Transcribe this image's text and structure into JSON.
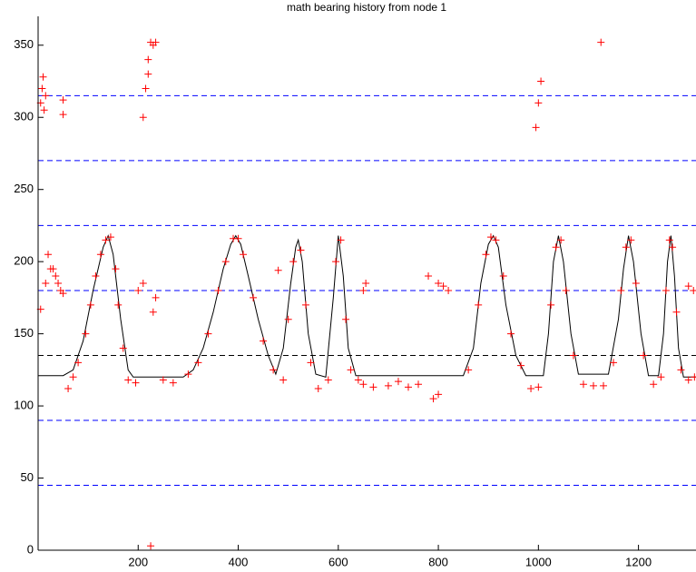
{
  "chart_data": {
    "type": "scatter",
    "title": "math bearing history from node 1",
    "xlim": [
      0,
      1315
    ],
    "ylim": [
      0,
      370
    ],
    "xticks": [
      200,
      400,
      600,
      800,
      1000,
      1200
    ],
    "yticks": [
      0,
      50,
      100,
      150,
      200,
      250,
      300,
      350
    ],
    "hlines": [
      {
        "value": 0,
        "color": "#0000ff"
      },
      {
        "value": 45,
        "color": "#0000ff"
      },
      {
        "value": 90,
        "color": "#0000ff"
      },
      {
        "value": 135,
        "color": "#000000"
      },
      {
        "value": 180,
        "color": "#0000ff"
      },
      {
        "value": 225,
        "color": "#0000ff"
      },
      {
        "value": 270,
        "color": "#0000ff"
      },
      {
        "value": 315,
        "color": "#0000ff"
      }
    ],
    "series": [
      {
        "type": "line",
        "color": "#000000",
        "x": [
          0,
          50,
          70,
          90,
          110,
          130,
          140,
          150,
          165,
          180,
          190,
          290,
          310,
          330,
          350,
          370,
          385,
          395,
          405,
          420,
          440,
          460,
          475,
          490,
          505,
          515,
          520,
          528,
          540,
          555,
          575,
          590,
          600,
          610,
          620,
          635,
          700,
          770,
          850,
          870,
          885,
          900,
          910,
          920,
          935,
          955,
          975,
          1010,
          1020,
          1030,
          1040,
          1050,
          1065,
          1080,
          1140,
          1160,
          1170,
          1180,
          1190,
          1205,
          1220,
          1240,
          1250,
          1258,
          1265,
          1272,
          1280,
          1290,
          1315
        ],
        "values": [
          121,
          121,
          125,
          145,
          180,
          210,
          218,
          205,
          160,
          125,
          120,
          120,
          125,
          140,
          165,
          195,
          212,
          218,
          212,
          190,
          160,
          135,
          122,
          140,
          185,
          210,
          215,
          200,
          150,
          122,
          120,
          175,
          218,
          190,
          140,
          121,
          121,
          121,
          121,
          140,
          185,
          212,
          218,
          210,
          170,
          135,
          121,
          121,
          150,
          200,
          218,
          200,
          150,
          122,
          122,
          160,
          195,
          218,
          200,
          150,
          121,
          121,
          150,
          200,
          218,
          190,
          140,
          120,
          120
        ]
      },
      {
        "type": "scatter",
        "color": "#ff0000",
        "x": [
          5,
          5,
          8,
          10,
          12,
          15,
          50,
          50,
          20,
          25,
          30,
          35,
          40,
          45,
          50,
          15,
          210,
          215,
          220,
          225,
          230,
          235,
          220,
          200,
          210,
          230,
          235,
          225,
          480,
          995,
          1000,
          1005,
          1125,
          650,
          655,
          790,
          800,
          820,
          800,
          780,
          810,
          1310,
          1300,
          760,
          700,
          650,
          670,
          720,
          740,
          60,
          70,
          80,
          95,
          105,
          115,
          125,
          135,
          145,
          155,
          160,
          170,
          180,
          195,
          250,
          270,
          300,
          320,
          340,
          360,
          375,
          390,
          400,
          410,
          430,
          450,
          470,
          490,
          500,
          510,
          525,
          535,
          545,
          560,
          580,
          595,
          605,
          615,
          625,
          640,
          860,
          880,
          895,
          905,
          915,
          930,
          945,
          965,
          985,
          1000,
          1025,
          1035,
          1045,
          1055,
          1070,
          1090,
          1110,
          1130,
          1150,
          1165,
          1175,
          1185,
          1195,
          1210,
          1230,
          1245,
          1255,
          1262,
          1268,
          1276,
          1285,
          1300,
          1312
        ],
        "values": [
          167,
          310,
          320,
          328,
          305,
          315,
          302,
          312,
          205,
          195,
          195,
          190,
          185,
          180,
          178,
          185,
          300,
          320,
          340,
          352,
          350,
          352,
          330,
          180,
          185,
          165,
          175,
          3,
          194,
          293,
          310,
          325,
          352,
          180,
          185,
          105,
          108,
          180,
          185,
          190,
          183,
          180,
          183,
          115,
          114,
          115,
          113,
          117,
          113,
          112,
          120,
          130,
          150,
          170,
          190,
          205,
          215,
          217,
          195,
          170,
          140,
          118,
          116,
          118,
          116,
          122,
          130,
          150,
          180,
          200,
          216,
          216,
          205,
          175,
          145,
          125,
          118,
          160,
          200,
          208,
          170,
          130,
          112,
          118,
          200,
          215,
          160,
          125,
          118,
          125,
          170,
          205,
          217,
          215,
          190,
          150,
          128,
          112,
          113,
          170,
          210,
          215,
          180,
          135,
          115,
          114,
          114,
          130,
          180,
          210,
          215,
          185,
          135,
          115,
          120,
          180,
          215,
          210,
          165,
          125,
          118,
          120
        ]
      }
    ]
  }
}
